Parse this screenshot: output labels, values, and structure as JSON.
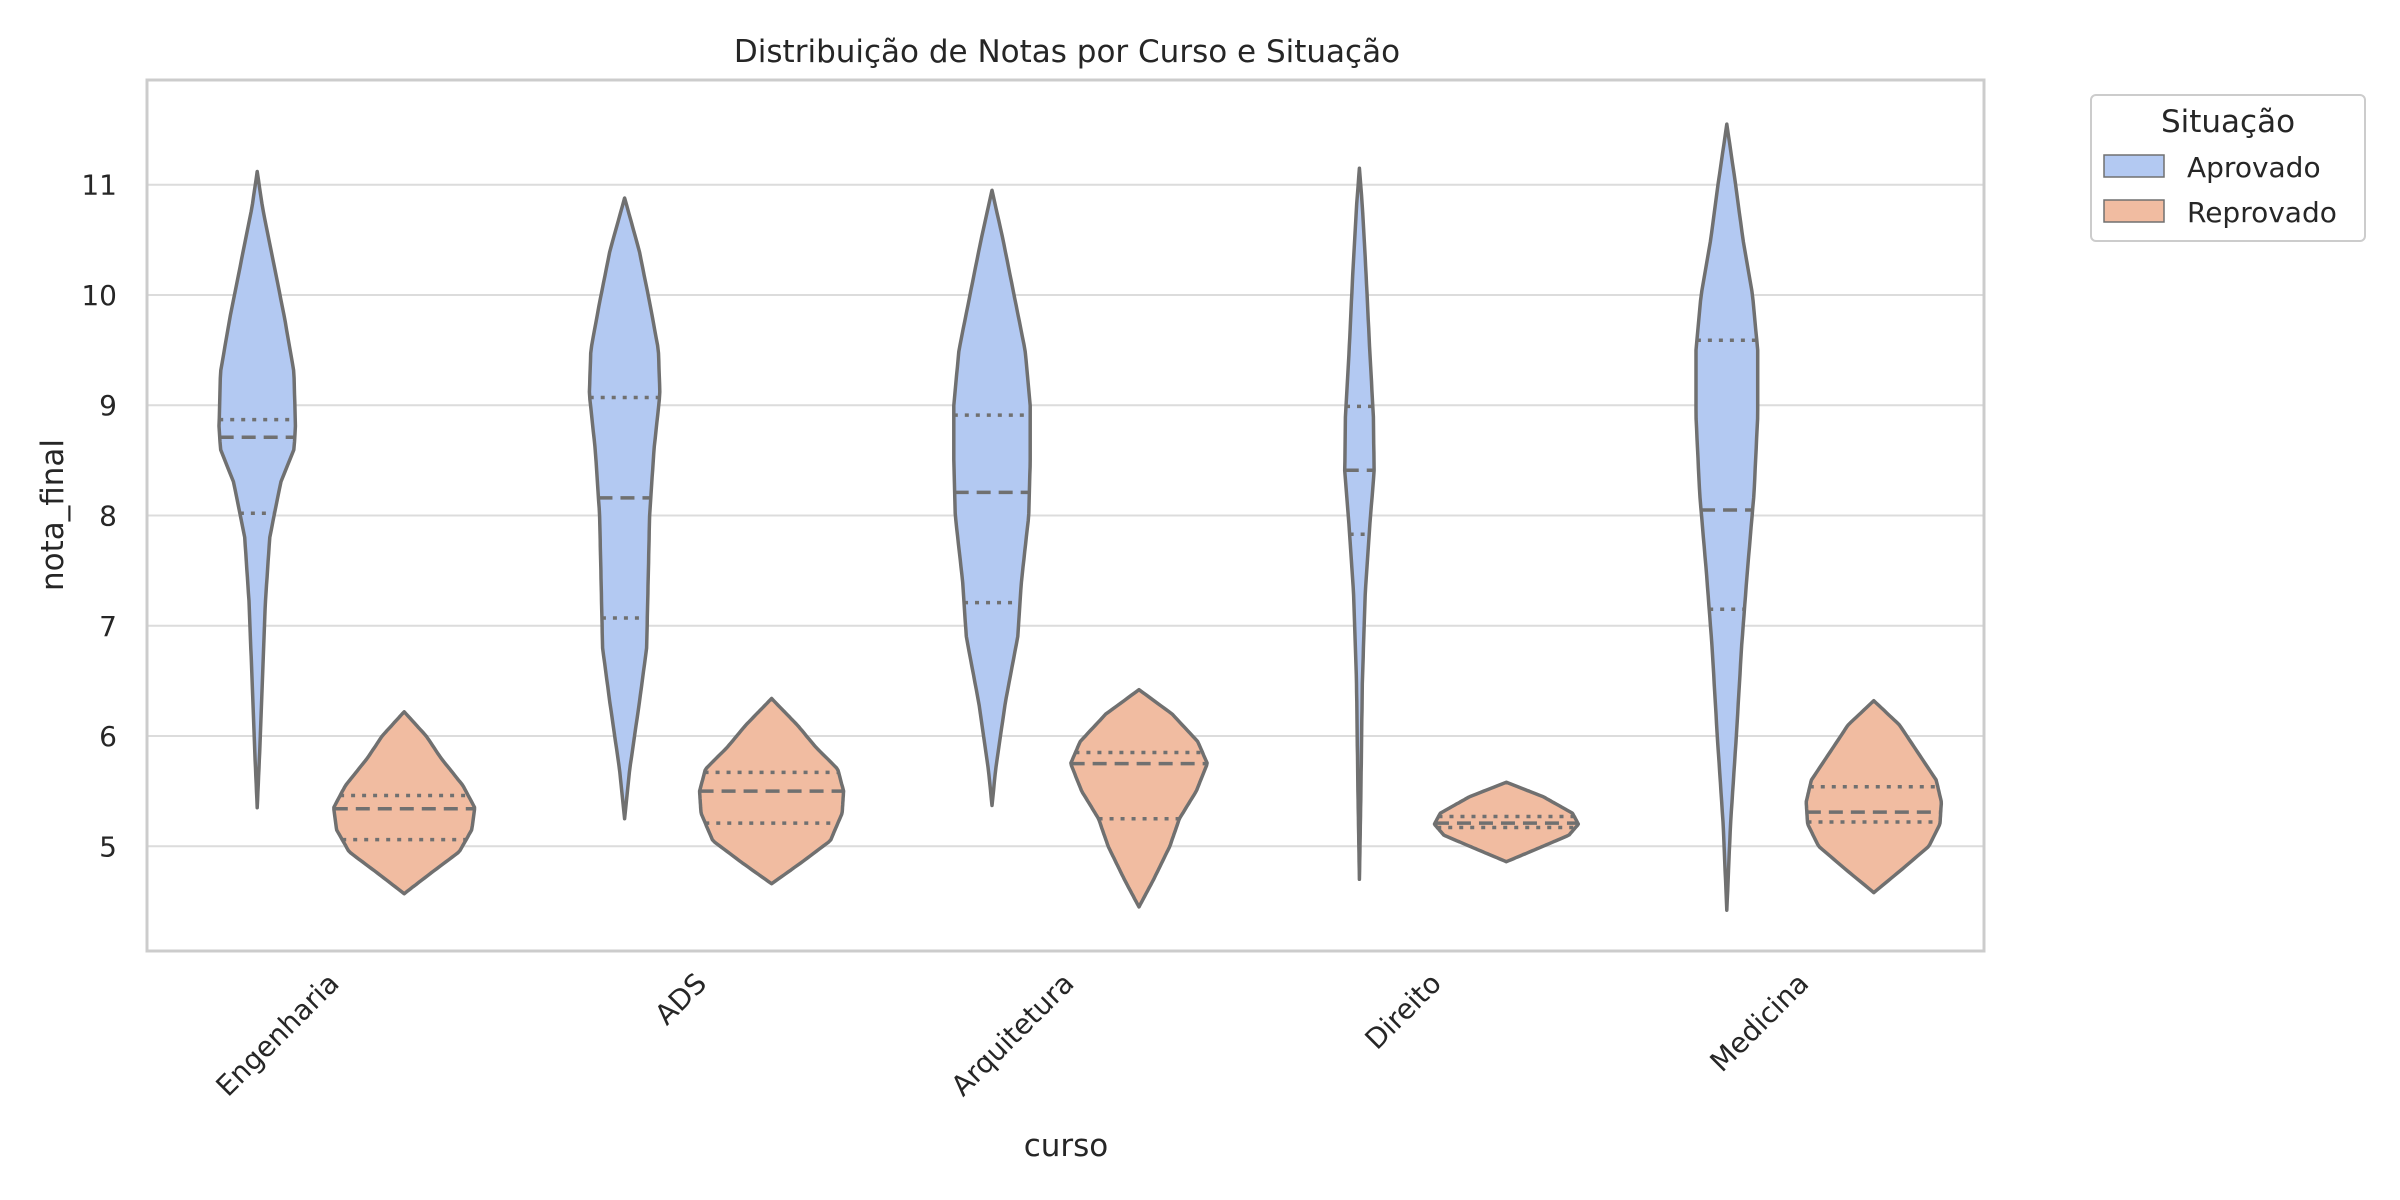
{
  "chart_data": {
    "type": "violin",
    "title": "Distribuição de Notas por Curso e Situação",
    "xlabel": "curso",
    "ylabel": "nota_final",
    "categories": [
      "Engenharia",
      "ADS",
      "Arquitetura",
      "Direito",
      "Medicina"
    ],
    "yticks": [
      5,
      6,
      7,
      8,
      9,
      10,
      11
    ],
    "ylim": [
      4.05,
      11.95
    ],
    "grid": true,
    "legend": {
      "title": "Situação",
      "placement": "upper-right-outside"
    },
    "series": [
      {
        "name": "Aprovado",
        "color": "#b3c9f2",
        "violins": [
          {
            "min": 5.35,
            "max": 11.12,
            "q1": 8.02,
            "median": 8.71,
            "q3": 8.87,
            "profile": [
              [
                5.35,
                0
              ],
              [
                5.8,
                0.03
              ],
              [
                6.5,
                0.07
              ],
              [
                7.2,
                0.11
              ],
              [
                7.8,
                0.17
              ],
              [
                8.3,
                0.32
              ],
              [
                8.6,
                0.5
              ],
              [
                8.8,
                0.52
              ],
              [
                9.3,
                0.5
              ],
              [
                9.8,
                0.37
              ],
              [
                10.3,
                0.22
              ],
              [
                10.8,
                0.07
              ],
              [
                11.12,
                0
              ]
            ]
          },
          {
            "min": 5.25,
            "max": 10.88,
            "q1": 7.07,
            "median": 8.16,
            "q3": 9.07,
            "profile": [
              [
                5.25,
                0
              ],
              [
                5.7,
                0.07
              ],
              [
                6.3,
                0.2
              ],
              [
                6.8,
                0.3
              ],
              [
                7.4,
                0.32
              ],
              [
                8.0,
                0.34
              ],
              [
                8.6,
                0.4
              ],
              [
                9.1,
                0.48
              ],
              [
                9.5,
                0.46
              ],
              [
                9.9,
                0.35
              ],
              [
                10.4,
                0.2
              ],
              [
                10.88,
                0
              ]
            ]
          },
          {
            "min": 5.37,
            "max": 10.95,
            "q1": 7.21,
            "median": 8.21,
            "q3": 8.91,
            "profile": [
              [
                5.37,
                0
              ],
              [
                5.7,
                0.05
              ],
              [
                6.3,
                0.18
              ],
              [
                6.9,
                0.35
              ],
              [
                7.4,
                0.4
              ],
              [
                8.0,
                0.5
              ],
              [
                8.5,
                0.52
              ],
              [
                9.0,
                0.52
              ],
              [
                9.5,
                0.45
              ],
              [
                10.0,
                0.3
              ],
              [
                10.5,
                0.15
              ],
              [
                10.95,
                0
              ]
            ]
          },
          {
            "min": 4.7,
            "max": 11.15,
            "q1": 7.83,
            "median": 8.41,
            "q3": 8.99,
            "profile": [
              [
                4.7,
                0
              ],
              [
                5.5,
                0.02
              ],
              [
                6.5,
                0.04
              ],
              [
                7.3,
                0.08
              ],
              [
                7.9,
                0.14
              ],
              [
                8.4,
                0.2
              ],
              [
                8.9,
                0.19
              ],
              [
                9.5,
                0.14
              ],
              [
                10.2,
                0.09
              ],
              [
                10.8,
                0.04
              ],
              [
                11.15,
                0
              ]
            ]
          },
          {
            "min": 4.42,
            "max": 11.55,
            "q1": 7.15,
            "median": 8.05,
            "q3": 9.59,
            "profile": [
              [
                4.42,
                0
              ],
              [
                5.2,
                0.05
              ],
              [
                6.0,
                0.13
              ],
              [
                6.8,
                0.2
              ],
              [
                7.5,
                0.28
              ],
              [
                8.2,
                0.37
              ],
              [
                8.9,
                0.42
              ],
              [
                9.5,
                0.42
              ],
              [
                10.0,
                0.35
              ],
              [
                10.5,
                0.22
              ],
              [
                11.0,
                0.12
              ],
              [
                11.55,
                0
              ]
            ]
          }
        ]
      },
      {
        "name": "Reprovado",
        "color": "#f1bca1",
        "violins": [
          {
            "min": 4.57,
            "max": 6.22,
            "q1": 5.06,
            "median": 5.34,
            "q3": 5.46,
            "profile": [
              [
                4.57,
                0
              ],
              [
                4.75,
                0.35
              ],
              [
                4.95,
                0.75
              ],
              [
                5.15,
                0.92
              ],
              [
                5.35,
                0.96
              ],
              [
                5.55,
                0.8
              ],
              [
                5.8,
                0.5
              ],
              [
                6.0,
                0.3
              ],
              [
                6.22,
                0
              ]
            ]
          },
          {
            "min": 4.66,
            "max": 6.34,
            "q1": 5.21,
            "median": 5.5,
            "q3": 5.67,
            "profile": [
              [
                4.66,
                0
              ],
              [
                4.85,
                0.4
              ],
              [
                5.05,
                0.8
              ],
              [
                5.3,
                0.96
              ],
              [
                5.5,
                0.98
              ],
              [
                5.7,
                0.9
              ],
              [
                5.9,
                0.6
              ],
              [
                6.1,
                0.35
              ],
              [
                6.34,
                0
              ]
            ]
          },
          {
            "min": 4.45,
            "max": 6.42,
            "q1": 5.25,
            "median": 5.75,
            "q3": 5.85,
            "profile": [
              [
                4.45,
                0
              ],
              [
                4.7,
                0.2
              ],
              [
                5.0,
                0.42
              ],
              [
                5.25,
                0.55
              ],
              [
                5.5,
                0.78
              ],
              [
                5.75,
                0.93
              ],
              [
                5.95,
                0.8
              ],
              [
                6.2,
                0.45
              ],
              [
                6.42,
                0
              ]
            ]
          },
          {
            "min": 4.86,
            "max": 5.58,
            "q1": 5.17,
            "median": 5.21,
            "q3": 5.27,
            "profile": [
              [
                4.86,
                0
              ],
              [
                5.0,
                0.5
              ],
              [
                5.1,
                0.85
              ],
              [
                5.2,
                0.98
              ],
              [
                5.3,
                0.9
              ],
              [
                5.45,
                0.5
              ],
              [
                5.58,
                0
              ]
            ]
          },
          {
            "min": 4.58,
            "max": 6.32,
            "q1": 5.22,
            "median": 5.31,
            "q3": 5.54,
            "profile": [
              [
                4.58,
                0
              ],
              [
                4.8,
                0.4
              ],
              [
                5.0,
                0.75
              ],
              [
                5.2,
                0.9
              ],
              [
                5.4,
                0.92
              ],
              [
                5.6,
                0.85
              ],
              [
                5.85,
                0.6
              ],
              [
                6.1,
                0.35
              ],
              [
                6.32,
                0
              ]
            ]
          }
        ]
      }
    ]
  },
  "style": {
    "line_color": "#707070",
    "grid_color": "#dcdcdc",
    "frame_color": "#cccccc"
  }
}
